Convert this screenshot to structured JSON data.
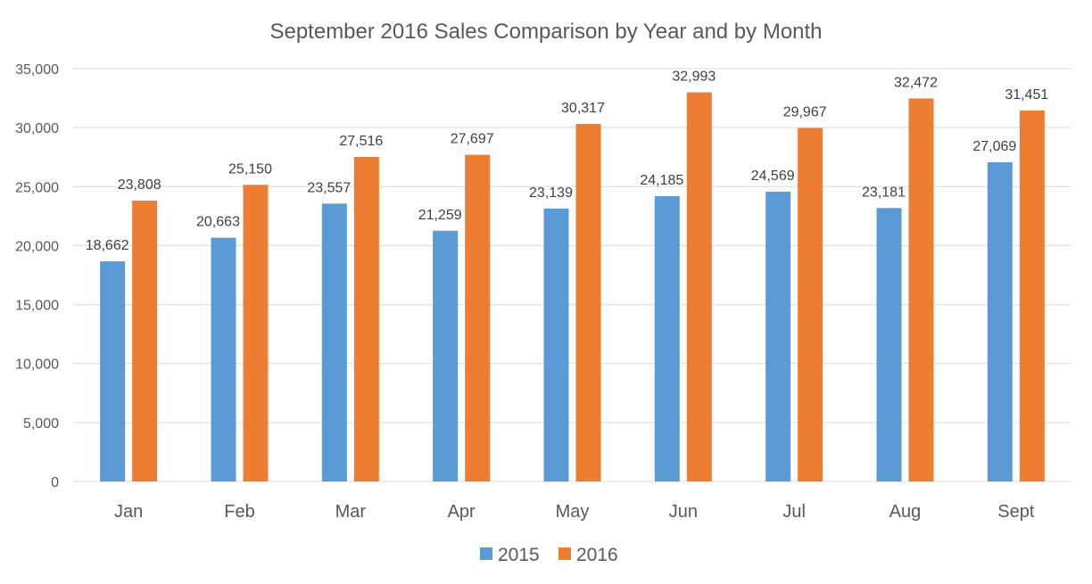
{
  "chart_data": {
    "type": "bar",
    "title": "September 2016 Sales Comparison by Year and by Month",
    "xlabel": "",
    "ylabel": "",
    "categories": [
      "Jan",
      "Feb",
      "Mar",
      "Apr",
      "May",
      "Jun",
      "Jul",
      "Aug",
      "Sept"
    ],
    "series": [
      {
        "name": "2015",
        "color": "#5b9bd5",
        "values": [
          18662,
          20663,
          23557,
          21259,
          23139,
          24185,
          24569,
          23181,
          27069
        ]
      },
      {
        "name": "2016",
        "color": "#ed7d31",
        "values": [
          23808,
          25150,
          27516,
          27697,
          30317,
          32993,
          29967,
          32472,
          31451
        ]
      }
    ],
    "ylim": [
      0,
      35000
    ],
    "yticks": [
      0,
      5000,
      10000,
      15000,
      20000,
      25000,
      30000,
      35000
    ],
    "ytick_labels": [
      "0",
      "5,000",
      "10,000",
      "15,000",
      "20,000",
      "25,000",
      "30,000",
      "35,000"
    ],
    "data_labels": [
      [
        "18,662",
        "20,663",
        "23,557",
        "21,259",
        "23,139",
        "24,185",
        "24,569",
        "23,181",
        "27,069"
      ],
      [
        "23,808",
        "25,150",
        "27,516",
        "27,697",
        "30,317",
        "32,993",
        "29,967",
        "32,472",
        "31,451"
      ]
    ],
    "grid": true,
    "legend_position": "bottom"
  }
}
